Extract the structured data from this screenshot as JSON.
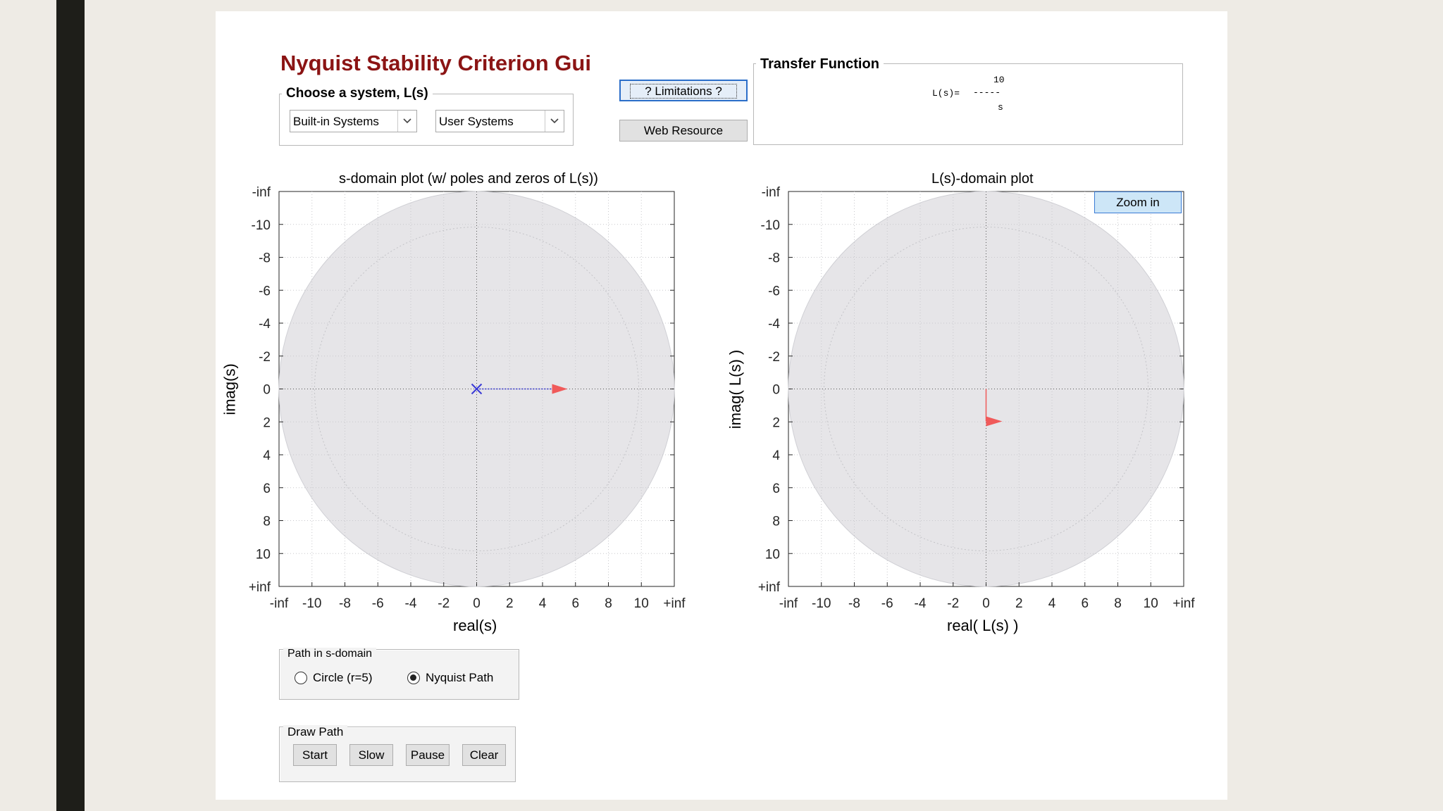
{
  "app": {
    "title": "Nyquist Stability Criterion Gui"
  },
  "system_chooser": {
    "legend": "Choose a system, L(s)",
    "builtin_select": "Built-in Systems",
    "user_select": "User Systems"
  },
  "buttons": {
    "limitations": "? Limitations ?",
    "web_resource": "Web Resource",
    "zoom_in": "Zoom in"
  },
  "transfer_function": {
    "legend": "Transfer Function",
    "lhs": "L(s)=",
    "numerator": "10",
    "bar": "-----",
    "denominator": "s"
  },
  "s_plot": {
    "title": "s-domain plot (w/ poles and zeros of L(s))",
    "xlabel": "real(s)",
    "ylabel": "imag(s)"
  },
  "l_plot": {
    "title": "L(s)-domain plot",
    "xlabel": "real( L(s) )",
    "ylabel": "imag( L(s) )"
  },
  "axes": {
    "x_ticks": [
      "-inf",
      "-10",
      "-8",
      "-6",
      "-4",
      "-2",
      "0",
      "2",
      "4",
      "6",
      "8",
      "10",
      "+inf"
    ],
    "y_ticks": [
      "+inf",
      "10",
      "8",
      "6",
      "4",
      "2",
      "0",
      "-2",
      "-4",
      "-6",
      "-8",
      "-10",
      "-inf"
    ]
  },
  "path_group": {
    "legend": "Path in s-domain",
    "option_circle": "Circle (r=5)",
    "option_nyquist": "Nyquist Path",
    "selected": "Nyquist Path"
  },
  "draw_group": {
    "legend": "Draw Path",
    "start": "Start",
    "slow": "Slow",
    "pause": "Pause",
    "clear": "Clear"
  },
  "colors": {
    "title": "#8b1414",
    "plot_disc": "#e6e5e8",
    "pole_marker": "#3b3bd6",
    "path_arrow": "#f05a5a",
    "zoom_button": "#cde6f7"
  },
  "icons": {
    "select_arrow": "chevron-down-icon",
    "pole": "x-marker-icon",
    "direction": "triangle-arrow-icon"
  }
}
